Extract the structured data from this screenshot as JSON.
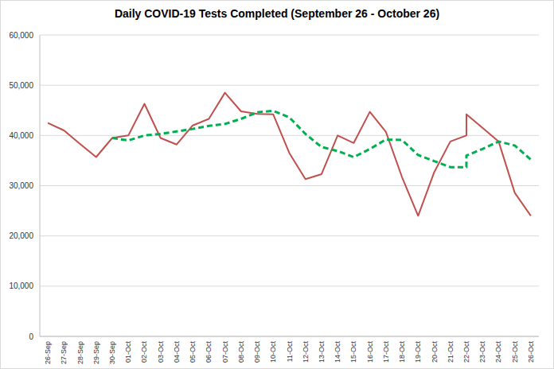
{
  "chart_data": {
    "type": "line",
    "title": "Daily COVID-19 Tests Completed (September 26 - October 26)",
    "x": [
      "26-Sep",
      "27-Sep",
      "28-Sep",
      "29-Sep",
      "30-Sep",
      "01-Oct",
      "02-Oct",
      "03-Oct",
      "04-Oct",
      "05-Oct",
      "06-Oct",
      "07-Oct",
      "08-Oct",
      "09-Oct",
      "10-Oct",
      "11-Oct",
      "12-Oct",
      "13-Oct",
      "14-Oct",
      "15-Oct",
      "16-Oct",
      "17-Oct",
      "18-Oct",
      "19-Oct",
      "20-Oct",
      "21-Oct",
      "22-Oct",
      "22-Oct",
      "23-Oct",
      "24-Oct",
      "25-Oct",
      "26-Oct"
    ],
    "xticks": [
      "26-Sep",
      "27-Sep",
      "28-Sep",
      "29-Sep",
      "30-Sep",
      "01-Oct",
      "02-Oct",
      "03-Oct",
      "04-Oct",
      "05-Oct",
      "06-Oct",
      "07-Oct",
      "08-Oct",
      "09-Oct",
      "10-Oct",
      "11-Oct",
      "12-Oct",
      "13-Oct",
      "14-Oct",
      "15-Oct",
      "16-Oct",
      "17-Oct",
      "18-Oct",
      "19-Oct",
      "20-Oct",
      "21-Oct",
      "22-Oct",
      "23-Oct",
      "24-Oct",
      "25-Oct",
      "26-Oct"
    ],
    "series": [
      {
        "color": "#c0504d",
        "line_style": "solid",
        "values": [
          42500,
          41000,
          38300,
          35700,
          39500,
          40000,
          46300,
          39500,
          38200,
          42000,
          43300,
          48500,
          44800,
          44300,
          44200,
          36500,
          31300,
          32300,
          40000,
          38500,
          44700,
          40700,
          31700,
          24000,
          32700,
          38800,
          40000,
          44200,
          41500,
          38800,
          28600,
          24000
        ]
      },
      {
        "color": "#00b050",
        "line_style": "dashed",
        "values": [
          null,
          null,
          null,
          null,
          39500,
          39000,
          40000,
          40300,
          40800,
          41300,
          41900,
          42300,
          43300,
          44600,
          44900,
          43600,
          40300,
          37700,
          36900,
          35700,
          37300,
          39200,
          39100,
          36100,
          34900,
          33700,
          33700,
          36000,
          37300,
          38800,
          38000,
          35200
        ]
      }
    ],
    "ylim": [
      0,
      60000
    ],
    "yticks": [
      0,
      {
        "value": 10000,
        "label": "10,000"
      },
      {
        "value": 20000,
        "label": "20,000"
      },
      {
        "value": 30000,
        "label": "30,000"
      },
      {
        "value": 40000,
        "label": "40,000"
      },
      {
        "value": 50000,
        "label": "50,000"
      },
      {
        "value": 60000,
        "label": "60,000"
      }
    ],
    "grid": true
  }
}
